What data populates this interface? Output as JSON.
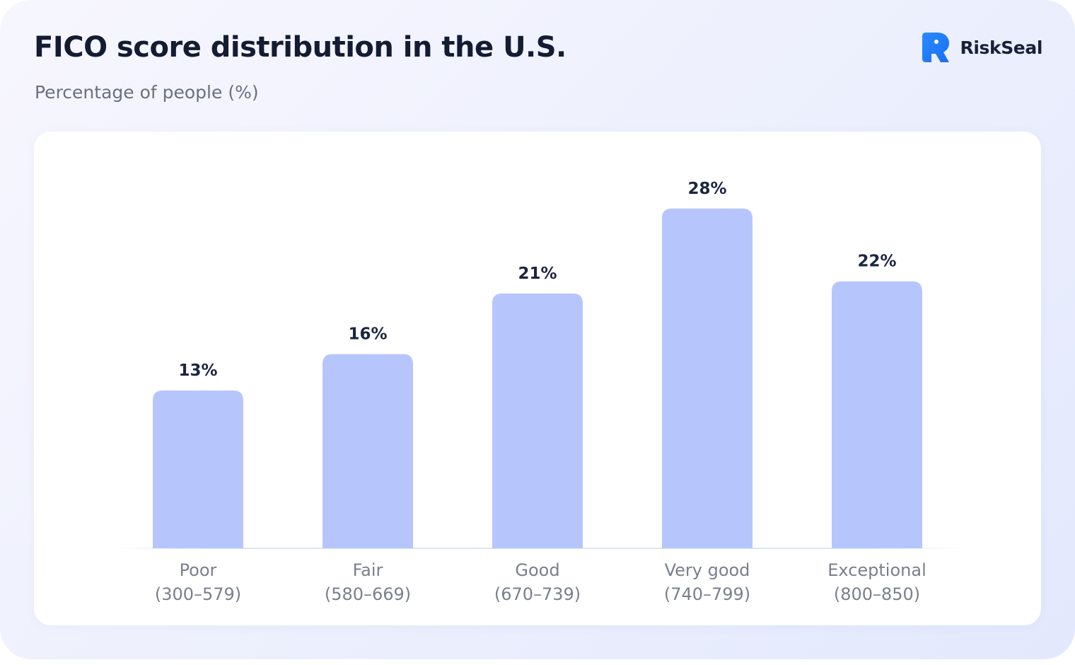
{
  "header": {
    "title": "FICO score distribution in the U.S.",
    "subtitle": "Percentage of people (%)"
  },
  "brand": {
    "name": "RiskSeal",
    "icon": "riskseal-logo-icon",
    "color": "#1e7cf8"
  },
  "colors": {
    "bar": "#b7c5fd",
    "value_text": "#1c2640",
    "tick_text": "#7a7f8c"
  },
  "chart_data": {
    "type": "bar",
    "title": "FICO score distribution in the U.S.",
    "ylabel": "Percentage of people (%)",
    "xlabel": "",
    "categories": [
      "Poor",
      "Fair",
      "Good",
      "Very good",
      "Exceptional"
    ],
    "ranges": [
      "(300–579)",
      "(580–669)",
      "(670–739)",
      "(740–799)",
      "(800–850)"
    ],
    "values": [
      13,
      16,
      21,
      28,
      22
    ],
    "value_labels": [
      "13%",
      "16%",
      "21%",
      "28%",
      "22%"
    ],
    "ylim": [
      0,
      35
    ],
    "grid": false,
    "legend": "none"
  }
}
